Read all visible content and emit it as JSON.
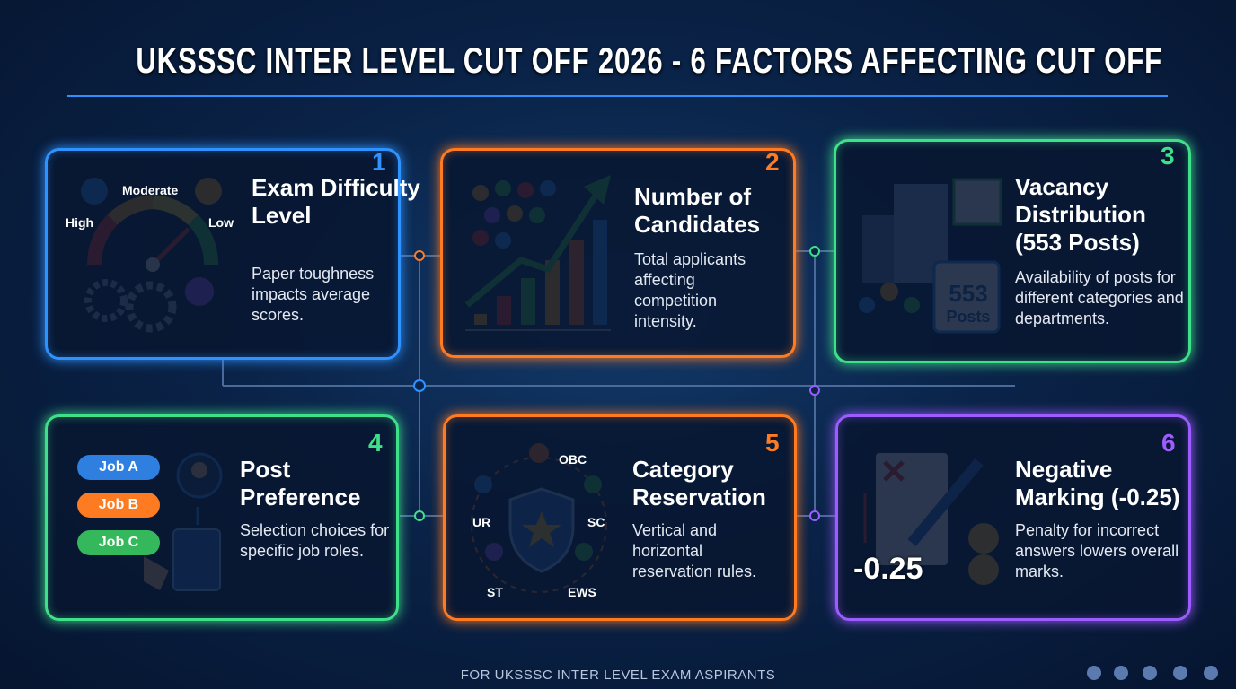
{
  "header": {
    "title": "UKSSSC INTER LEVEL CUT OFF 2026 - 6 FACTORS AFFECTING CUT OFF"
  },
  "cards": [
    {
      "number": "1",
      "title": "Exam Difficulty Level",
      "description": "Paper toughness impacts average scores.",
      "icon_labels": [
        "Moderate",
        "High",
        "Low"
      ]
    },
    {
      "number": "2",
      "title": "Number of Candidates",
      "description": "Total applicants affecting competition intensity."
    },
    {
      "number": "3",
      "title": "Vacancy Distribution (553 Posts)",
      "description": "Availability of posts for different categories and departments.",
      "icon_labels": [
        "553",
        "Posts"
      ]
    },
    {
      "number": "4",
      "title": "Post Preference",
      "description": "Selection choices for specific job roles.",
      "icon_labels": [
        "Job A",
        "Job B",
        "Job C"
      ]
    },
    {
      "number": "5",
      "title": "Category Reservation",
      "description": "Vertical and horizontal reservation rules.",
      "icon_labels": [
        "OBC",
        "UR",
        "SC",
        "ST",
        "EWS"
      ]
    },
    {
      "number": "6",
      "title": "Negative Marking (-0.25)",
      "description": "Penalty for incorrect answers lowers overall marks.",
      "icon_labels": [
        "-0.25"
      ]
    }
  ],
  "footer": {
    "text": "FOR UKSSSC INTER LEVEL EXAM ASPIRANTS"
  }
}
